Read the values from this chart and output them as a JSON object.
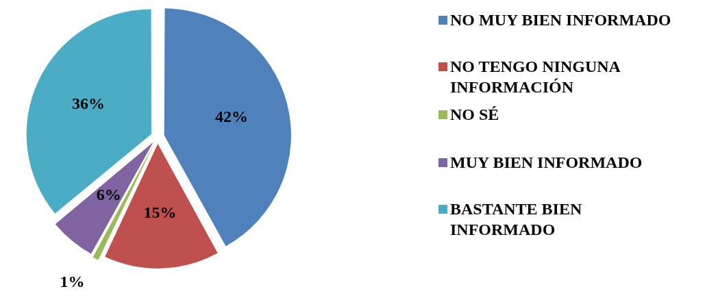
{
  "chart_data": {
    "type": "pie",
    "categories": [
      "NO MUY BIEN INFORMADO",
      "NO TENGO NINGUNA INFORMACIÓN",
      "NO SÉ",
      "MUY BIEN INFORMADO",
      "BASTANTE BIEN INFORMADO"
    ],
    "values": [
      42,
      15,
      1,
      6,
      36
    ],
    "colors": [
      "#4f81bd",
      "#c0504d",
      "#9bbb59",
      "#8064a2",
      "#4bacc6"
    ],
    "value_labels": [
      "42%",
      "15%",
      "1%",
      "6%",
      "36%"
    ],
    "legend": "right"
  }
}
